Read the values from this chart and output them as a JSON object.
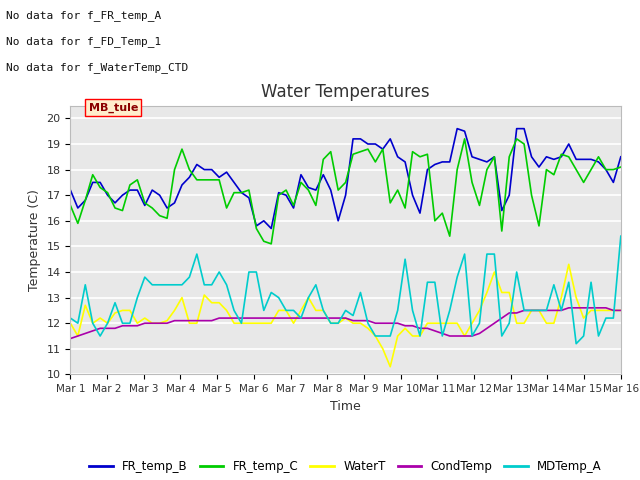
{
  "title": "Water Temperatures",
  "xlabel": "Time",
  "ylabel": "Temperature (C)",
  "ylim": [
    10.0,
    20.5
  ],
  "yticks": [
    10.0,
    11.0,
    12.0,
    13.0,
    14.0,
    15.0,
    16.0,
    17.0,
    18.0,
    19.0,
    20.0
  ],
  "x_labels": [
    "Mar 1",
    "Mar 2",
    "Mar 3",
    "Mar 4",
    "Mar 5",
    "Mar 6",
    "Mar 7",
    "Mar 8",
    "Mar 9",
    "Mar 10",
    "Mar 11",
    "Mar 12",
    "Mar 13",
    "Mar 14",
    "Mar 15",
    "Mar 16"
  ],
  "background_color": "#e8e8e8",
  "annotations": [
    "No data for f_FR_temp_A",
    "No data for f_FD_Temp_1",
    "No data for f_WaterTemp_CTD"
  ],
  "mb_tule_label": "MB_tule",
  "legend": [
    "FR_temp_B",
    "FR_temp_C",
    "WaterT",
    "CondTemp",
    "MDTemp_A"
  ],
  "line_colors": {
    "FR_temp_B": "#0000cc",
    "FR_temp_C": "#00cc00",
    "WaterT": "#ffff00",
    "CondTemp": "#aa00aa",
    "MDTemp_A": "#00cccc"
  },
  "FR_temp_B": [
    17.2,
    16.5,
    16.8,
    17.5,
    17.5,
    17.0,
    16.7,
    17.0,
    17.2,
    17.2,
    16.6,
    17.2,
    17.0,
    16.5,
    16.7,
    17.4,
    17.7,
    18.2,
    18.0,
    18.0,
    17.7,
    17.9,
    17.5,
    17.1,
    16.9,
    15.8,
    16.0,
    15.7,
    17.1,
    17.0,
    16.5,
    17.8,
    17.3,
    17.2,
    17.8,
    17.2,
    16.0,
    17.0,
    19.2,
    19.2,
    19.0,
    19.0,
    18.8,
    19.2,
    18.5,
    18.3,
    17.0,
    16.3,
    18.0,
    18.2,
    18.3,
    18.3,
    19.6,
    19.5,
    18.5,
    18.4,
    18.3,
    18.5,
    16.4,
    17.0,
    19.6,
    19.6,
    18.5,
    18.1,
    18.5,
    18.4,
    18.5,
    19.0,
    18.4,
    18.4,
    18.4,
    18.3,
    18.0,
    17.5,
    18.5
  ],
  "FR_temp_C": [
    16.6,
    15.9,
    16.8,
    17.8,
    17.3,
    17.1,
    16.5,
    16.4,
    17.4,
    17.6,
    16.7,
    16.5,
    16.2,
    16.1,
    18.0,
    18.8,
    18.0,
    17.6,
    17.6,
    17.6,
    17.6,
    16.5,
    17.1,
    17.1,
    17.2,
    15.7,
    15.2,
    15.1,
    17.0,
    17.2,
    16.6,
    17.5,
    17.2,
    16.6,
    18.4,
    18.7,
    17.2,
    17.5,
    18.6,
    18.7,
    18.8,
    18.3,
    18.8,
    16.7,
    17.2,
    16.5,
    18.7,
    18.5,
    18.6,
    16.0,
    16.3,
    15.4,
    18.0,
    19.2,
    17.5,
    16.6,
    18.0,
    18.5,
    15.6,
    18.5,
    19.2,
    19.0,
    17.0,
    15.8,
    18.0,
    17.8,
    18.6,
    18.5,
    18.0,
    17.5,
    18.0,
    18.5,
    18.0,
    18.0,
    18.1
  ],
  "WaterT": [
    12.0,
    11.5,
    12.7,
    12.0,
    12.2,
    12.0,
    12.4,
    12.5,
    12.5,
    12.0,
    12.2,
    12.0,
    12.0,
    12.1,
    12.5,
    13.0,
    12.0,
    12.0,
    13.1,
    12.8,
    12.8,
    12.5,
    12.0,
    12.0,
    12.0,
    12.0,
    12.0,
    12.0,
    12.5,
    12.5,
    12.0,
    12.5,
    13.0,
    12.5,
    12.5,
    12.0,
    12.0,
    12.2,
    12.0,
    12.0,
    11.8,
    11.5,
    11.0,
    10.3,
    11.5,
    11.8,
    11.5,
    11.5,
    12.0,
    12.0,
    12.0,
    12.0,
    12.0,
    11.5,
    12.0,
    12.5,
    13.2,
    14.0,
    13.2,
    13.2,
    12.0,
    12.0,
    12.5,
    12.5,
    12.0,
    12.0,
    13.0,
    14.3,
    13.0,
    12.2,
    12.5,
    12.5,
    12.5,
    12.5,
    12.5
  ],
  "CondTemp": [
    11.4,
    11.5,
    11.6,
    11.7,
    11.8,
    11.8,
    11.8,
    11.9,
    11.9,
    11.9,
    12.0,
    12.0,
    12.0,
    12.0,
    12.1,
    12.1,
    12.1,
    12.1,
    12.1,
    12.1,
    12.2,
    12.2,
    12.2,
    12.2,
    12.2,
    12.2,
    12.2,
    12.2,
    12.2,
    12.2,
    12.2,
    12.2,
    12.2,
    12.2,
    12.2,
    12.2,
    12.2,
    12.2,
    12.1,
    12.1,
    12.1,
    12.0,
    12.0,
    12.0,
    12.0,
    11.9,
    11.9,
    11.8,
    11.8,
    11.7,
    11.6,
    11.5,
    11.5,
    11.5,
    11.5,
    11.6,
    11.8,
    12.0,
    12.2,
    12.4,
    12.4,
    12.5,
    12.5,
    12.5,
    12.5,
    12.5,
    12.5,
    12.6,
    12.6,
    12.6,
    12.6,
    12.6,
    12.6,
    12.5,
    12.5
  ],
  "MDTemp_A": [
    12.2,
    12.0,
    13.5,
    12.0,
    11.5,
    12.0,
    12.8,
    12.0,
    12.0,
    13.0,
    13.8,
    13.5,
    13.5,
    13.5,
    13.5,
    13.5,
    13.8,
    14.7,
    13.5,
    13.5,
    14.0,
    13.5,
    12.5,
    12.0,
    14.0,
    14.0,
    12.5,
    13.2,
    13.0,
    12.5,
    12.5,
    12.2,
    13.0,
    13.5,
    12.5,
    12.0,
    12.0,
    12.5,
    12.3,
    13.2,
    12.0,
    11.5,
    11.5,
    11.5,
    12.5,
    14.5,
    12.5,
    11.5,
    13.6,
    13.6,
    11.5,
    12.5,
    13.8,
    14.7,
    11.5,
    12.0,
    14.7,
    14.7,
    11.5,
    12.0,
    14.0,
    12.5,
    12.5,
    12.5,
    12.5,
    13.5,
    12.5,
    13.6,
    11.2,
    11.5,
    13.6,
    11.5,
    12.2,
    12.2,
    15.4
  ]
}
